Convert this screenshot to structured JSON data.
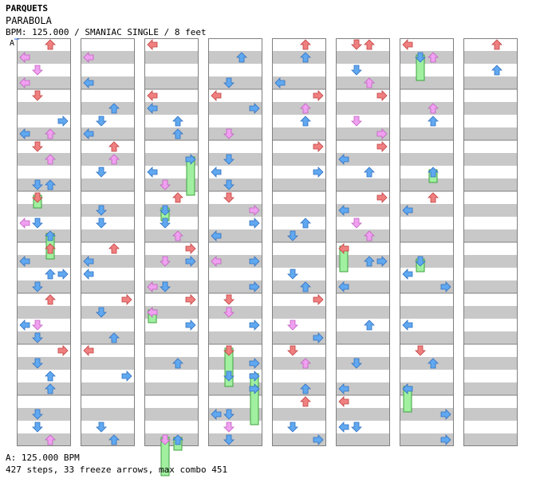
{
  "header": {
    "title": "PARQUETS",
    "subtitle": "PARABOLA",
    "bpm_info": "BPM: 125.000 / SMANIAC SINGLE / 8 feet"
  },
  "chart": {
    "marker_label": "A",
    "column_count": 8,
    "lanes": [
      "left",
      "down",
      "up",
      "right"
    ],
    "note_colors": {
      "quarter": "#f08080",
      "eighth": "#60a8f0",
      "sixteenth": "#f0a0f0",
      "freeze": "#a0f0a0"
    },
    "row_shading": "#c8c8c8"
  },
  "footer": {
    "bpm": "A: 125.000 BPM",
    "stats": "427 steps, 33 freeze arrows, max combo 451"
  }
}
